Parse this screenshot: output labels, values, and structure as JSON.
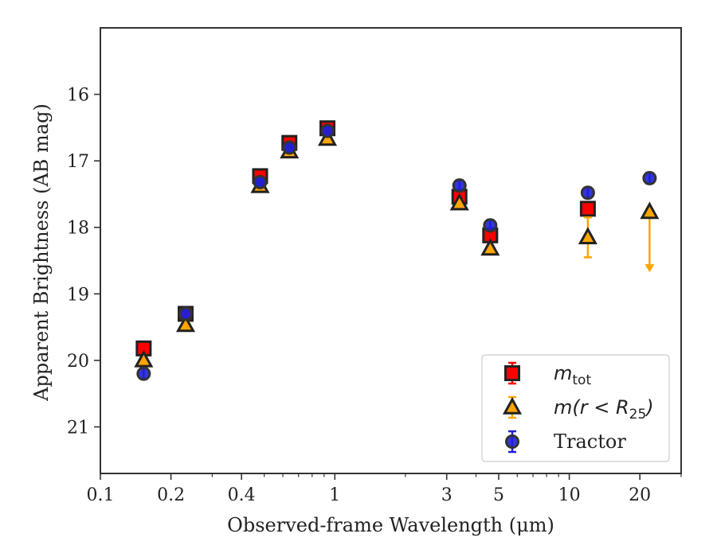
{
  "chart_data": {
    "type": "scatter",
    "xlabel": "Observed-frame Wavelength (μm)",
    "ylabel": "Apparent Brightness (AB mag)",
    "xscale": "log",
    "xlim": [
      0.1,
      30
    ],
    "ylim": [
      21.7,
      15.0
    ],
    "y_inverted": true,
    "x_ticks": [
      0.1,
      0.2,
      0.4,
      1,
      3,
      5,
      10,
      20
    ],
    "x_tick_labels": [
      "0.1",
      "0.2",
      "0.4",
      "1",
      "3",
      "5",
      "10",
      "20"
    ],
    "y_ticks": [
      16,
      17,
      18,
      19,
      20,
      21
    ],
    "y_tick_labels": [
      "16",
      "17",
      "18",
      "19",
      "20",
      "21"
    ],
    "grid": false,
    "legend_position": "lower-right",
    "series": [
      {
        "name": "m_tot",
        "legend_main": "m",
        "legend_sub": "tot",
        "marker": "square",
        "color": "#ff0000",
        "edge_color": "#222222",
        "points": [
          {
            "x": 0.153,
            "y": 19.82,
            "err": 0.05
          },
          {
            "x": 0.231,
            "y": 19.3,
            "err": 0.05
          },
          {
            "x": 0.48,
            "y": 17.23,
            "err": 0.05
          },
          {
            "x": 0.64,
            "y": 16.73,
            "err": 0.05
          },
          {
            "x": 0.93,
            "y": 16.51,
            "err": 0.05
          },
          {
            "x": 3.4,
            "y": 17.54,
            "err": 0.05
          },
          {
            "x": 4.6,
            "y": 18.12,
            "err": 0.05
          },
          {
            "x": 12.0,
            "y": 17.72,
            "err": 0.07
          }
        ]
      },
      {
        "name": "m(r < R25)",
        "legend_main": "m(r < R",
        "legend_sub": "25",
        "legend_close": ")",
        "marker": "triangle",
        "color": "#ffa500",
        "edge_color": "#222222",
        "points": [
          {
            "x": 0.153,
            "y": 20.0,
            "err": 0.05
          },
          {
            "x": 0.231,
            "y": 19.47,
            "err": 0.05
          },
          {
            "x": 0.48,
            "y": 17.38,
            "err": 0.05
          },
          {
            "x": 0.64,
            "y": 16.86,
            "err": 0.05
          },
          {
            "x": 0.93,
            "y": 16.67,
            "err": 0.05
          },
          {
            "x": 3.4,
            "y": 17.64,
            "err": 0.05
          },
          {
            "x": 4.6,
            "y": 18.32,
            "err": 0.05
          },
          {
            "x": 12.0,
            "y": 18.15,
            "err": 0.3
          },
          {
            "x": 22.0,
            "y": 17.77,
            "upper_limit": true,
            "arrow_to": 18.65
          }
        ]
      },
      {
        "name": "Tractor",
        "marker": "circle",
        "color": "#1f1fd8",
        "edge_color": "#333333",
        "points": [
          {
            "x": 0.153,
            "y": 20.2,
            "err": 0.08
          },
          {
            "x": 0.231,
            "y": 19.3,
            "err": 0.05
          },
          {
            "x": 0.48,
            "y": 17.32,
            "err": 0.05
          },
          {
            "x": 0.64,
            "y": 16.8,
            "err": 0.05
          },
          {
            "x": 0.93,
            "y": 16.55,
            "err": 0.05
          },
          {
            "x": 3.4,
            "y": 17.37,
            "err": 0.08
          },
          {
            "x": 4.6,
            "y": 17.97,
            "err": 0.08
          },
          {
            "x": 12.0,
            "y": 17.48,
            "err": 0.08
          },
          {
            "x": 22.0,
            "y": 17.26,
            "err": 0.08
          }
        ]
      }
    ]
  }
}
